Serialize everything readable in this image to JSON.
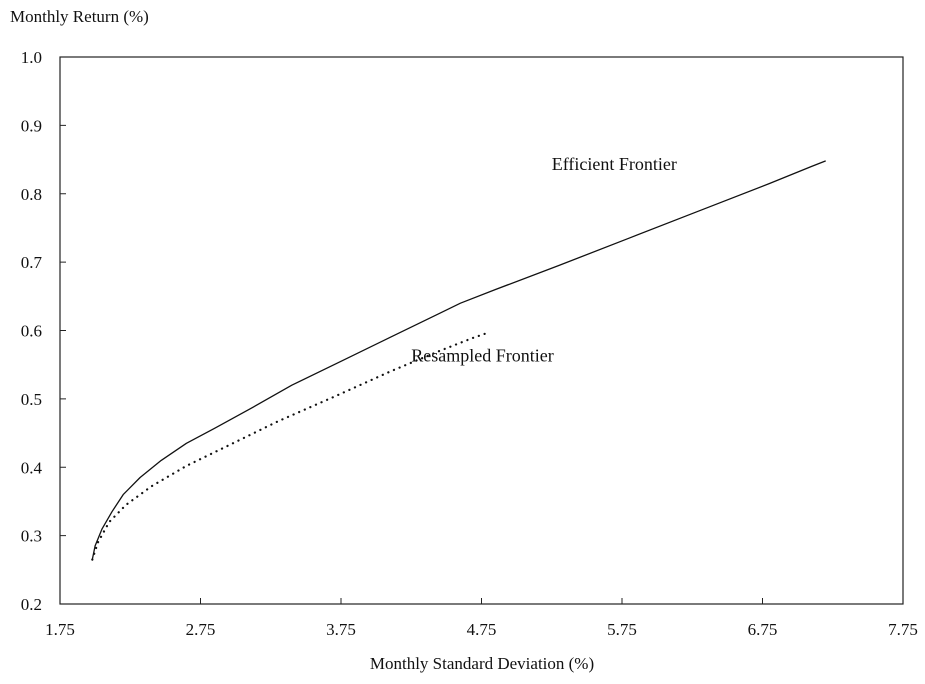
{
  "chart_data": {
    "type": "line",
    "title": "",
    "xlabel": "Monthly Standard Deviation (%)",
    "ylabel": "Monthly Return (%)",
    "xlim": [
      1.75,
      7.75
    ],
    "ylim": [
      0.2,
      1.0
    ],
    "x_ticks": [
      "1.75",
      "2.75",
      "3.75",
      "4.75",
      "5.75",
      "6.75",
      "7.75"
    ],
    "y_ticks": [
      "0.2",
      "0.3",
      "0.4",
      "0.5",
      "0.6",
      "0.7",
      "0.8",
      "0.9",
      "1.0"
    ],
    "grid": false,
    "series": [
      {
        "name": "Efficient Frontier",
        "style": "solid",
        "color": "#111111",
        "points": [
          [
            1.98,
            0.265
          ],
          [
            2.0,
            0.285
          ],
          [
            2.05,
            0.31
          ],
          [
            2.12,
            0.335
          ],
          [
            2.2,
            0.36
          ],
          [
            2.32,
            0.385
          ],
          [
            2.47,
            0.41
          ],
          [
            2.65,
            0.435
          ],
          [
            2.85,
            0.457
          ],
          [
            3.1,
            0.485
          ],
          [
            3.4,
            0.52
          ],
          [
            3.75,
            0.555
          ],
          [
            4.1,
            0.59
          ],
          [
            4.45,
            0.625
          ],
          [
            4.6,
            0.64
          ],
          [
            4.85,
            0.66
          ],
          [
            5.3,
            0.695
          ],
          [
            5.8,
            0.735
          ],
          [
            6.3,
            0.775
          ],
          [
            6.8,
            0.815
          ],
          [
            7.1,
            0.84
          ],
          [
            7.2,
            0.848
          ]
        ]
      },
      {
        "name": "Resampled Frontier",
        "style": "dotted",
        "color": "#111111",
        "points": [
          [
            1.98,
            0.265
          ],
          [
            2.02,
            0.29
          ],
          [
            2.1,
            0.32
          ],
          [
            2.22,
            0.345
          ],
          [
            2.4,
            0.372
          ],
          [
            2.65,
            0.402
          ],
          [
            2.95,
            0.432
          ],
          [
            3.3,
            0.467
          ],
          [
            3.7,
            0.503
          ],
          [
            4.1,
            0.54
          ],
          [
            4.45,
            0.57
          ],
          [
            4.7,
            0.59
          ],
          [
            4.8,
            0.597
          ]
        ]
      }
    ],
    "annotations": [
      {
        "text": "Efficient Frontier",
        "x": 5.25,
        "y": 0.835
      },
      {
        "text": "Resampled Frontier",
        "x": 4.25,
        "y": 0.555
      }
    ]
  }
}
